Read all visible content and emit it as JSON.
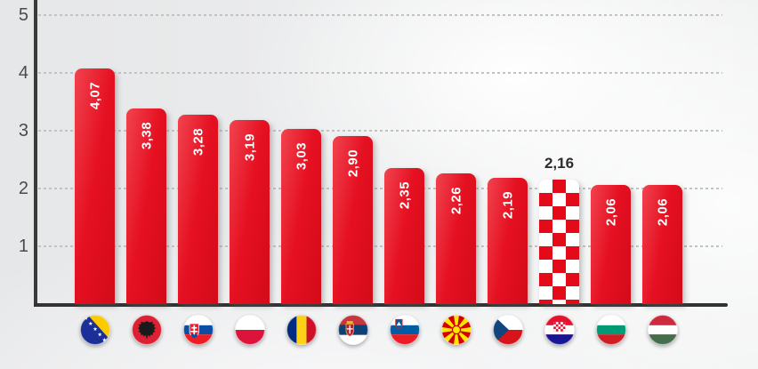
{
  "chart_data": {
    "type": "bar",
    "title": "",
    "xlabel": "",
    "ylabel": "",
    "ylim": [
      0,
      5
    ],
    "yticks": [
      1,
      2,
      3,
      4,
      5
    ],
    "grid": "dashed horizontal gridlines",
    "legend": "none",
    "decimal_separator": ",",
    "categories": [
      "Bosnia and Herzegovina",
      "Albania",
      "Slovakia",
      "Poland",
      "Romania",
      "Serbia",
      "Slovenia",
      "North Macedonia",
      "Czech Republic",
      "Croatia",
      "Bulgaria",
      "Hungary"
    ],
    "flag_ids": [
      "bosnia",
      "albania",
      "slovakia",
      "poland",
      "romania",
      "serbia",
      "slovenia",
      "north-macedonia",
      "czech-republic",
      "croatia",
      "bulgaria",
      "hungary"
    ],
    "values": [
      4.07,
      3.38,
      3.28,
      3.19,
      3.03,
      2.9,
      2.35,
      2.26,
      2.19,
      2.16,
      2.06,
      2.06
    ],
    "value_labels": [
      "4,07",
      "3,38",
      "3,28",
      "3,19",
      "3,03",
      "2,90",
      "2,35",
      "2,26",
      "2,19",
      "2,16",
      "2,06",
      "2,06"
    ],
    "highlight_index": 9,
    "highlight_style": "red-white checkerboard bar with dark value label above"
  },
  "colors": {
    "bar_red": "#e30b17",
    "bar_red_light": "#f1434f",
    "bar_red_dark": "#d30b18",
    "axis": "#333333",
    "gridline": "#c2c2c4",
    "tick_text": "#4a4a4a",
    "bar_label_text": "#ffffff",
    "highlight_label_text": "#2d2d2d",
    "background": "#eaebec"
  }
}
